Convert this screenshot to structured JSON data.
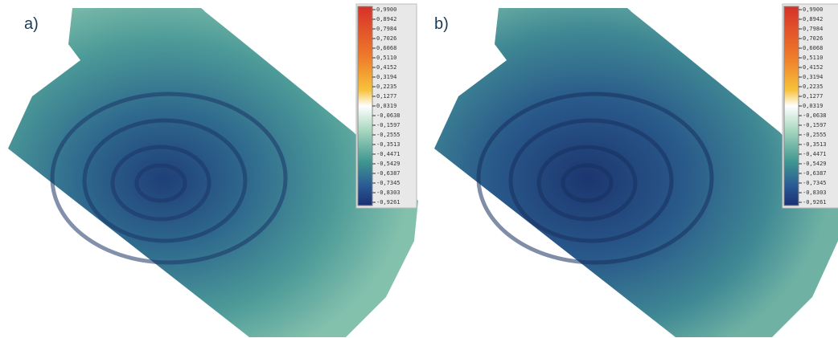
{
  "panels": [
    {
      "label": "a)",
      "colorbar": {
        "ticks": [
          "0,9900",
          "0,8942",
          "0,7984",
          "0,7026",
          "0,6068",
          "0,5110",
          "0,4152",
          "0,3194",
          "0,2235",
          "0,1277",
          "0,0319",
          "-0,0638",
          "-0,1597",
          "-0,2555",
          "-0,3513",
          "-0,4471",
          "-0,5429",
          "-0,6387",
          "-0,7345",
          "-0,8303",
          "-0,9261"
        ]
      }
    },
    {
      "label": "b)",
      "colorbar": {
        "ticks": [
          "0,9900",
          "0,8942",
          "0,7984",
          "0,7026",
          "0,6068",
          "0,5110",
          "0,4152",
          "0,3194",
          "0,2235",
          "0,1277",
          "0,0319",
          "-0,0638",
          "-0,1597",
          "-0,2555",
          "-0,3513",
          "-0,4471",
          "-0,5429",
          "-0,6387",
          "-0,7345",
          "-0,8303",
          "-0,9261"
        ]
      }
    }
  ]
}
